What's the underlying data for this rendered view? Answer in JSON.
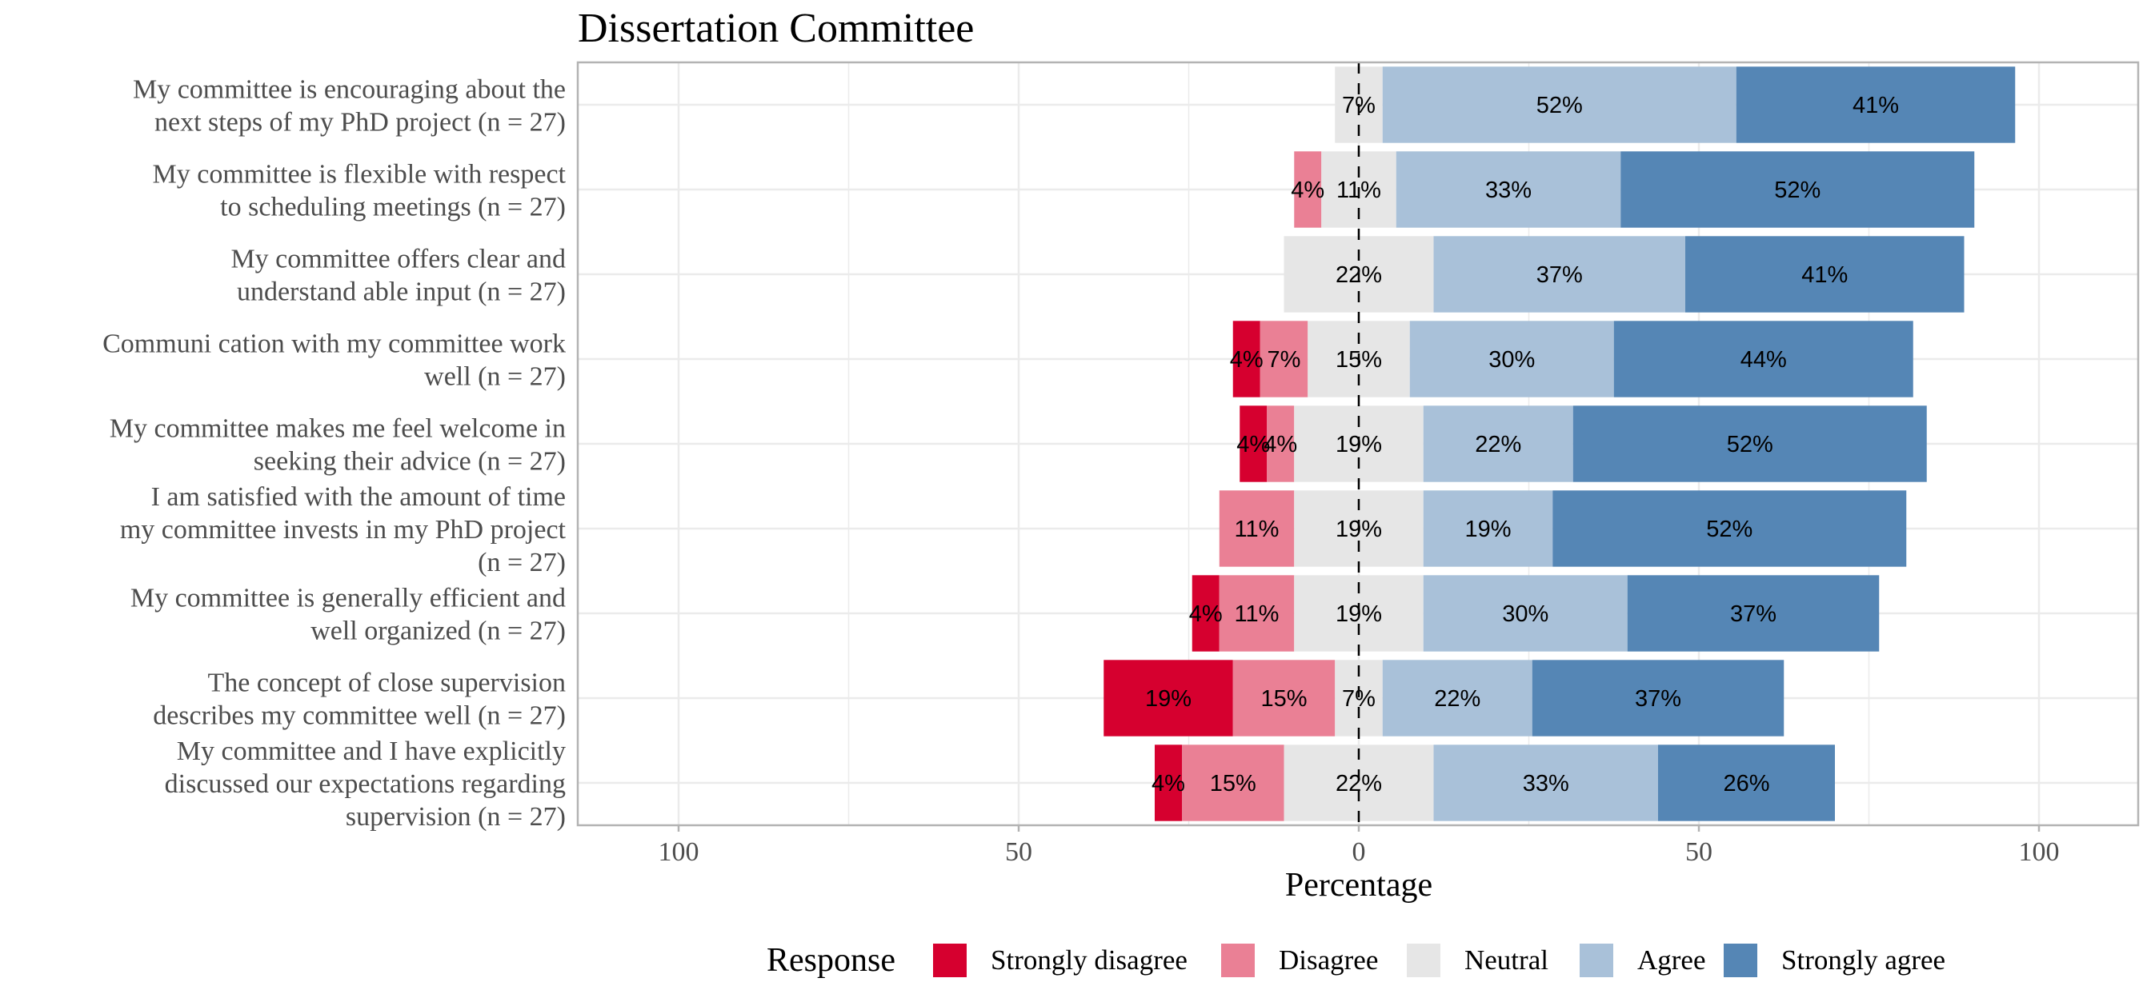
{
  "chart_data": {
    "type": "bar",
    "title": "Dissertation Committee",
    "xlabel": "Percentage",
    "ylabel": "",
    "xlim": [
      -115,
      115
    ],
    "x_ticks": [
      -100,
      -50,
      0,
      50,
      100
    ],
    "x_tick_labels": [
      "100",
      "50",
      "0",
      "50",
      "100"
    ],
    "grid": true,
    "legend_title": "Response",
    "legend_position": "bottom",
    "responses": [
      "Strongly disagree",
      "Disagree",
      "Neutral",
      "Agree",
      "Strongly agree"
    ],
    "colors": [
      "#d6002f",
      "#ea8095",
      "#e6e6e6",
      "#a9c1d9",
      "#5586b5"
    ],
    "items": [
      {
        "label": [
          "My committee is encouraging about the",
          "next steps of my PhD project (n = 27)"
        ],
        "values": [
          0,
          0,
          7,
          52,
          41
        ]
      },
      {
        "label": [
          "My committee is flexible with respect",
          "to scheduling meetings (n = 27)"
        ],
        "values": [
          0,
          4,
          11,
          33,
          52
        ]
      },
      {
        "label": [
          "My committee offers clear and",
          "understand able input (n = 27)"
        ],
        "values": [
          0,
          0,
          22,
          37,
          41
        ]
      },
      {
        "label": [
          "Communi cation with my committee work",
          "well (n = 27)"
        ],
        "values": [
          4,
          7,
          15,
          30,
          44
        ]
      },
      {
        "label": [
          "My committee makes me feel welcome in",
          "seeking their advice (n = 27)"
        ],
        "values": [
          4,
          4,
          19,
          22,
          52
        ]
      },
      {
        "label": [
          "I am satisfied with the amount of time",
          "my committee invests in my PhD project",
          "(n = 27)"
        ],
        "values": [
          0,
          11,
          19,
          19,
          52
        ]
      },
      {
        "label": [
          "My committee is generally efficient and",
          "well organized (n = 27)"
        ],
        "values": [
          4,
          11,
          19,
          30,
          37
        ]
      },
      {
        "label": [
          "The concept of close supervision",
          "describes my committee well (n = 27)"
        ],
        "values": [
          19,
          15,
          7,
          22,
          37
        ]
      },
      {
        "label": [
          "My committee and I have explicitly",
          "discussed our expectations regarding",
          "supervision (n = 27)"
        ],
        "values": [
          4,
          15,
          22,
          33,
          26
        ]
      }
    ]
  }
}
